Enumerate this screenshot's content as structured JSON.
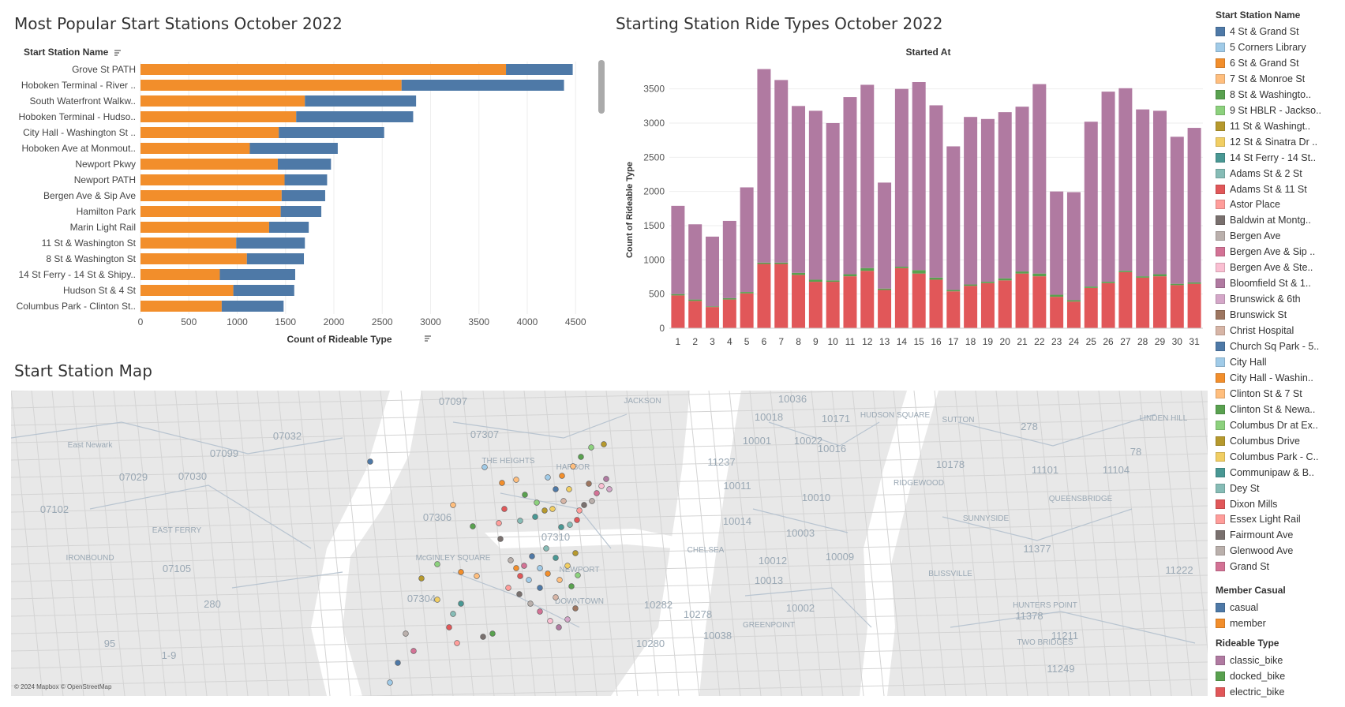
{
  "bar_chart": {
    "title": "Most Popular Start Stations October 2022",
    "row_header": "Start Station Name",
    "xlabel": "Count of Rideable Type",
    "member_color": "#F28E2B",
    "casual_color": "#4E79A7"
  },
  "column_chart": {
    "title": "Starting Station Ride Types October 2022",
    "header": "Started At",
    "ylabel": "Count of Rideable Type",
    "classic_color": "#B07AA1",
    "electric_color": "#E15759",
    "docked_color": "#59A14F"
  },
  "map": {
    "title": "Start Station Map",
    "attribution": "© 2024 Mapbox © OpenStreetMap",
    "place_labels": [
      "East Newark",
      "07029",
      "07102",
      "07099",
      "07032",
      "07097",
      "07307",
      "07306",
      "07310",
      "07304",
      "07105",
      "EAST FERRY",
      "IRONBOUND",
      "THE HEIGHTS",
      "NEWPORT",
      "DOWNTOWN",
      "McGINLEY SQUARE",
      "10036",
      "10018",
      "10001",
      "10011",
      "10014",
      "10012",
      "10013",
      "10003",
      "10009",
      "10002",
      "10282",
      "10280",
      "10278",
      "10038",
      "10010",
      "10016",
      "10022",
      "10171",
      "10178",
      "11101",
      "11104",
      "11377",
      "11222",
      "11378",
      "11211",
      "11249",
      "11237",
      "CHELSEA",
      "HUDSON SQUARE",
      "SUTTON",
      "QUEENSBRIDGE",
      "SUNNYSIDE",
      "BLISSVILLE",
      "GREENPOINT",
      "TWO BRIDGES",
      "RIDGEWOOD",
      "HUNTERS POINT",
      "LINDEN HILL",
      "JACKSON",
      "HARBOR",
      "07030",
      "280",
      "95",
      "1-9",
      "78",
      "278"
    ]
  },
  "legend": {
    "station_header": "Start Station Name",
    "stations": [
      {
        "label": "4 St & Grand St",
        "color": "#4E79A7"
      },
      {
        "label": "5 Corners Library",
        "color": "#A0CBE8"
      },
      {
        "label": "6 St & Grand St",
        "color": "#F28E2B"
      },
      {
        "label": "7 St & Monroe St",
        "color": "#FFBE7D"
      },
      {
        "label": "8 St & Washingto..",
        "color": "#59A14F"
      },
      {
        "label": "9 St HBLR - Jackso..",
        "color": "#8CD17D"
      },
      {
        "label": "11 St & Washingt..",
        "color": "#B6992D"
      },
      {
        "label": "12 St & Sinatra Dr ..",
        "color": "#F1CE63"
      },
      {
        "label": "14 St Ferry - 14 St..",
        "color": "#499894"
      },
      {
        "label": "Adams St & 2 St",
        "color": "#86BCB6"
      },
      {
        "label": "Adams St & 11 St",
        "color": "#E15759"
      },
      {
        "label": "Astor Place",
        "color": "#FF9D9A"
      },
      {
        "label": "Baldwin at Montg..",
        "color": "#79706E"
      },
      {
        "label": "Bergen Ave",
        "color": "#BAB0AC"
      },
      {
        "label": "Bergen Ave & Sip ..",
        "color": "#D37295"
      },
      {
        "label": "Bergen Ave & Ste..",
        "color": "#FABFD2"
      },
      {
        "label": "Bloomfield St & 1..",
        "color": "#B07AA1"
      },
      {
        "label": "Brunswick & 6th",
        "color": "#D4A6C8"
      },
      {
        "label": "Brunswick St",
        "color": "#9D7660"
      },
      {
        "label": "Christ Hospital",
        "color": "#D7B5A6"
      },
      {
        "label": "Church Sq Park - 5..",
        "color": "#4E79A7"
      },
      {
        "label": "City Hall",
        "color": "#A0CBE8"
      },
      {
        "label": "City Hall - Washin..",
        "color": "#F28E2B"
      },
      {
        "label": "Clinton St & 7 St",
        "color": "#FFBE7D"
      },
      {
        "label": "Clinton St & Newa..",
        "color": "#59A14F"
      },
      {
        "label": "Columbus Dr at Ex..",
        "color": "#8CD17D"
      },
      {
        "label": "Columbus Drive",
        "color": "#B6992D"
      },
      {
        "label": "Columbus Park - C..",
        "color": "#F1CE63"
      },
      {
        "label": "Communipaw & B..",
        "color": "#499894"
      },
      {
        "label": "Dey St",
        "color": "#86BCB6"
      },
      {
        "label": "Dixon Mills",
        "color": "#E15759"
      },
      {
        "label": "Essex Light Rail",
        "color": "#FF9D9A"
      },
      {
        "label": "Fairmount Ave",
        "color": "#79706E"
      },
      {
        "label": "Glenwood Ave",
        "color": "#BAB0AC"
      },
      {
        "label": "Grand St",
        "color": "#D37295"
      }
    ],
    "member_header": "Member Casual",
    "member_items": [
      {
        "label": "casual",
        "color": "#4E79A7"
      },
      {
        "label": "member",
        "color": "#F28E2B"
      }
    ],
    "rideable_header": "Rideable Type",
    "rideable_items": [
      {
        "label": "classic_bike",
        "color": "#B07AA1"
      },
      {
        "label": "docked_bike",
        "color": "#59A14F"
      },
      {
        "label": "electric_bike",
        "color": "#E15759"
      }
    ]
  },
  "chart_data": [
    {
      "type": "bar",
      "orientation": "horizontal",
      "stacked": true,
      "title": "Most Popular Start Stations October 2022",
      "xlabel": "Count of Rideable Type",
      "ylabel": "Start Station Name",
      "xlim": [
        0,
        4800
      ],
      "xticks": [
        0,
        500,
        1000,
        1500,
        2000,
        2500,
        3000,
        3500,
        4000,
        4500
      ],
      "categories": [
        "Grove St PATH",
        "Hoboken Terminal - River ..",
        "South Waterfront Walkw..",
        "Hoboken Terminal - Hudso..",
        "City Hall - Washington St ..",
        "Hoboken Ave at Monmout..",
        "Newport Pkwy",
        "Newport PATH",
        "Bergen Ave & Sip Ave",
        "Hamilton Park",
        "Marin Light Rail",
        "11 St & Washington St",
        "8 St & Washington St",
        "14 St Ferry - 14 St & Shipy..",
        "Hudson St & 4 St",
        "Columbus Park - Clinton St.."
      ],
      "series": [
        {
          "name": "member",
          "values": [
            3780,
            2700,
            1700,
            1610,
            1430,
            1130,
            1420,
            1490,
            1460,
            1450,
            1330,
            990,
            1100,
            820,
            960,
            840
          ]
        },
        {
          "name": "casual",
          "values": [
            690,
            1680,
            1150,
            1210,
            1090,
            910,
            550,
            440,
            450,
            420,
            410,
            710,
            590,
            780,
            630,
            640
          ]
        }
      ],
      "legend": "right"
    },
    {
      "type": "bar",
      "stacked": true,
      "title": "Starting Station Ride Types October 2022",
      "xlabel": "Started At",
      "ylabel": "Count of Rideable Type",
      "ylim": [
        0,
        3900
      ],
      "yticks": [
        0,
        500,
        1000,
        1500,
        2000,
        2500,
        3000,
        3500
      ],
      "categories": [
        "1",
        "2",
        "3",
        "4",
        "5",
        "6",
        "7",
        "8",
        "9",
        "10",
        "11",
        "12",
        "13",
        "14",
        "15",
        "16",
        "17",
        "18",
        "19",
        "20",
        "21",
        "22",
        "23",
        "24",
        "25",
        "26",
        "27",
        "28",
        "29",
        "30",
        "31"
      ],
      "series": [
        {
          "name": "electric_bike",
          "values": [
            480,
            400,
            310,
            420,
            510,
            940,
            940,
            780,
            680,
            680,
            760,
            840,
            560,
            880,
            800,
            710,
            540,
            620,
            660,
            700,
            800,
            760,
            460,
            390,
            590,
            660,
            820,
            740,
            760,
            630,
            650
          ]
        },
        {
          "name": "docked_bike",
          "values": [
            20,
            20,
            10,
            20,
            20,
            20,
            20,
            30,
            30,
            20,
            30,
            40,
            20,
            20,
            50,
            30,
            20,
            20,
            20,
            30,
            30,
            40,
            30,
            20,
            20,
            20,
            20,
            20,
            30,
            20,
            20
          ]
        },
        {
          "name": "classic_bike",
          "values": [
            1290,
            1100,
            1020,
            1130,
            1530,
            2830,
            2670,
            2440,
            2470,
            2300,
            2590,
            2680,
            1550,
            2600,
            2750,
            2520,
            2100,
            2450,
            2380,
            2430,
            2410,
            2770,
            1510,
            1580,
            2410,
            2780,
            2670,
            2440,
            2390,
            2150,
            2260
          ]
        }
      ],
      "legend": "right"
    }
  ]
}
